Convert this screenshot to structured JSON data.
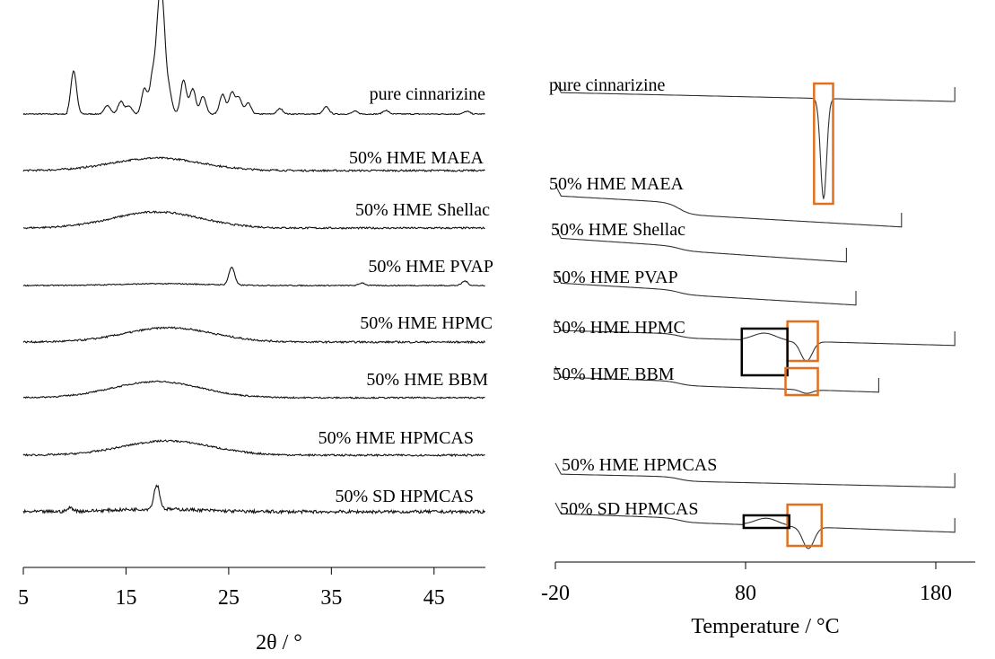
{
  "chart_data": [
    {
      "type": "line",
      "title": "",
      "xlabel": "2θ / °",
      "ylabel": "",
      "xlim": [
        5,
        50
      ],
      "x_ticks": [
        "5",
        "15",
        "25",
        "35",
        "45"
      ],
      "grid": false,
      "series": [
        {
          "name": "pure cinnarizine",
          "kind": "crystalline",
          "peaks": [
            [
              9.9,
              48
            ],
            [
              13.2,
              10
            ],
            [
              14.5,
              14
            ],
            [
              15.3,
              9
            ],
            [
              16.8,
              28
            ],
            [
              17.6,
              42
            ],
            [
              18.2,
              95
            ],
            [
              18.6,
              88
            ],
            [
              19.2,
              24
            ],
            [
              20.6,
              38
            ],
            [
              21.5,
              28
            ],
            [
              22.5,
              20
            ],
            [
              24.4,
              22
            ],
            [
              25.3,
              24
            ],
            [
              26.0,
              18
            ],
            [
              26.9,
              12
            ],
            [
              30.0,
              6
            ],
            [
              34.5,
              8
            ],
            [
              37.3,
              3
            ],
            [
              40.3,
              4
            ],
            [
              48.2,
              3
            ]
          ]
        },
        {
          "name": "50% HME MAEA",
          "kind": "amorphous",
          "halo_center": 18.0,
          "halo_height": 14
        },
        {
          "name": "50% HME Shellac",
          "kind": "amorphous",
          "halo_center": 18.0,
          "halo_height": 18
        },
        {
          "name": "50% HME PVAP",
          "kind": "amorphous",
          "halo_center": 18.5,
          "halo_height": 2,
          "peaks": [
            [
              25.3,
              20
            ],
            [
              38.0,
              3
            ],
            [
              48.0,
              5
            ]
          ]
        },
        {
          "name": "50% HME HPMC",
          "kind": "amorphous",
          "halo_center": 19.2,
          "halo_height": 16
        },
        {
          "name": "50% HME BBM",
          "kind": "amorphous",
          "halo_center": 18.0,
          "halo_height": 18
        },
        {
          "name": "50% HME HPMCAS",
          "kind": "amorphous",
          "halo_center": 19.0,
          "halo_height": 16
        },
        {
          "name": "50% SD HPMCAS",
          "kind": "amorphous",
          "halo_center": 18.0,
          "halo_height": 3,
          "peaks": [
            [
              18.0,
              27
            ],
            [
              9.6,
              4
            ]
          ]
        }
      ]
    },
    {
      "type": "line",
      "title": "",
      "xlabel": "Temperature / °C",
      "ylabel": "",
      "xlim": [
        -20,
        190
      ],
      "x_ticks": [
        "-20",
        "80",
        "180"
      ],
      "grid": false,
      "series": [
        {
          "name": "pure cinnarizine",
          "x_end": 190,
          "melt_peak": {
            "x": 121,
            "depth": 112
          },
          "highlight": {
            "type": "melting",
            "x": [
              116,
              126
            ]
          }
        },
        {
          "name": "50% HME MAEA",
          "x_end": 162
        },
        {
          "name": "50% HME Shellac",
          "x_end": 133
        },
        {
          "name": "50% HME PVAP",
          "x_end": 138
        },
        {
          "name": "50% HME HPMC",
          "x_end": 190,
          "glass_transition": {
            "x": [
              78,
              102
            ]
          },
          "melt_peak": {
            "x": 112,
            "depth": 22
          },
          "highlight": {
            "type": "melting",
            "x": [
              102,
              118
            ]
          }
        },
        {
          "name": "50% HME BBM",
          "x_end": 150,
          "melt_peak": {
            "x": 112,
            "depth": 4
          },
          "highlight": {
            "type": "melting",
            "x": [
              101,
              118
            ]
          }
        },
        {
          "name": "50% HME HPMCAS",
          "x_end": 190
        },
        {
          "name": "50% SD HPMCAS",
          "x_end": 190,
          "glass_transition": {
            "x": [
              79,
              103
            ]
          },
          "melt_peak": {
            "x": 113,
            "depth": 24
          },
          "highlight": {
            "type": "melting",
            "x": [
              102,
              120
            ]
          }
        }
      ],
      "highlight_colors": {
        "melting": "#e07020",
        "glass_transition": "#000000"
      }
    }
  ]
}
